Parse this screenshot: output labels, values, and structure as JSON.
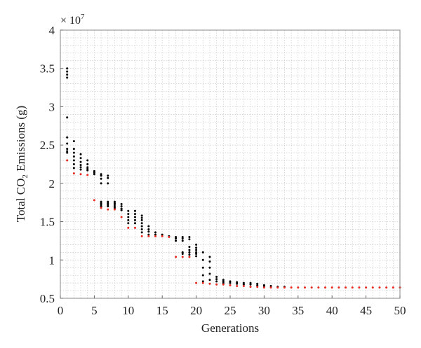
{
  "chart_data": {
    "type": "scatter",
    "title": "",
    "xlabel": "Generations",
    "ylabel_parts": {
      "pre": "Total CO",
      "sub": "2",
      "post": " Emissions (g)"
    },
    "y_multiplier_label": {
      "base": "× 10",
      "exp": "7"
    },
    "xlim": [
      0,
      50
    ],
    "ylim": [
      0.5,
      4
    ],
    "x_ticks": [
      0,
      5,
      10,
      15,
      20,
      25,
      30,
      35,
      40,
      45,
      50
    ],
    "x_tick_labels": [
      "0",
      "5",
      "10",
      "15",
      "20",
      "25",
      "30",
      "35",
      "40",
      "45",
      "50"
    ],
    "y_ticks": [
      0.5,
      1,
      1.5,
      2,
      2.5,
      3,
      3.5,
      4
    ],
    "y_tick_labels": [
      "0.5",
      "1",
      "1.5",
      "2",
      "2.5",
      "3",
      "3.5",
      "4"
    ],
    "grid": true,
    "series": [
      {
        "color": "#000000",
        "points": [
          [
            1,
            3.5
          ],
          [
            1,
            3.46
          ],
          [
            1,
            3.42
          ],
          [
            1,
            3.38
          ],
          [
            1,
            2.86
          ],
          [
            1,
            2.6
          ],
          [
            1,
            2.52
          ],
          [
            1,
            2.45
          ],
          [
            1,
            2.42
          ],
          [
            1,
            2.4
          ],
          [
            2,
            2.55
          ],
          [
            2,
            2.45
          ],
          [
            2,
            2.4
          ],
          [
            2,
            2.35
          ],
          [
            2,
            2.3
          ],
          [
            2,
            2.25
          ],
          [
            2,
            2.2
          ],
          [
            3,
            2.38
          ],
          [
            3,
            2.33
          ],
          [
            3,
            2.28
          ],
          [
            3,
            2.24
          ],
          [
            3,
            2.21
          ],
          [
            3,
            2.18
          ],
          [
            4,
            2.3
          ],
          [
            4,
            2.25
          ],
          [
            4,
            2.21
          ],
          [
            4,
            2.19
          ],
          [
            4,
            2.17
          ],
          [
            5,
            2.16
          ],
          [
            5,
            2.14
          ],
          [
            5,
            2.12
          ],
          [
            6,
            2.12
          ],
          [
            6,
            2.1
          ],
          [
            6,
            2.06
          ],
          [
            6,
            2.0
          ],
          [
            6,
            1.76
          ],
          [
            6,
            1.74
          ],
          [
            6,
            1.72
          ],
          [
            6,
            1.7
          ],
          [
            7,
            2.1
          ],
          [
            7,
            2.07
          ],
          [
            7,
            2.0
          ],
          [
            7,
            1.76
          ],
          [
            7,
            1.74
          ],
          [
            7,
            1.72
          ],
          [
            7,
            1.7
          ],
          [
            8,
            1.76
          ],
          [
            8,
            1.74
          ],
          [
            8,
            1.72
          ],
          [
            8,
            1.7
          ],
          [
            8,
            1.68
          ],
          [
            9,
            1.73
          ],
          [
            9,
            1.7
          ],
          [
            9,
            1.67
          ],
          [
            9,
            1.65
          ],
          [
            10,
            1.64
          ],
          [
            10,
            1.6
          ],
          [
            10,
            1.56
          ],
          [
            10,
            1.52
          ],
          [
            10,
            1.48
          ],
          [
            11,
            1.64
          ],
          [
            11,
            1.6
          ],
          [
            11,
            1.56
          ],
          [
            11,
            1.52
          ],
          [
            11,
            1.48
          ],
          [
            12,
            1.58
          ],
          [
            12,
            1.55
          ],
          [
            12,
            1.52
          ],
          [
            12,
            1.48
          ],
          [
            12,
            1.44
          ],
          [
            12,
            1.4
          ],
          [
            12,
            1.36
          ],
          [
            13,
            1.44
          ],
          [
            13,
            1.4
          ],
          [
            13,
            1.37
          ],
          [
            13,
            1.33
          ],
          [
            14,
            1.36
          ],
          [
            14,
            1.33
          ],
          [
            15,
            1.33
          ],
          [
            16,
            1.31
          ],
          [
            17,
            1.3
          ],
          [
            17,
            1.28
          ],
          [
            17,
            1.25
          ],
          [
            18,
            1.3
          ],
          [
            18,
            1.28
          ],
          [
            18,
            1.25
          ],
          [
            18,
            1.1
          ],
          [
            18,
            1.08
          ],
          [
            19,
            1.3
          ],
          [
            19,
            1.27
          ],
          [
            19,
            1.17
          ],
          [
            19,
            1.13
          ],
          [
            19,
            1.1
          ],
          [
            19,
            1.07
          ],
          [
            20,
            1.2
          ],
          [
            20,
            1.16
          ],
          [
            20,
            1.13
          ],
          [
            20,
            1.1
          ],
          [
            20,
            1.08
          ],
          [
            20,
            1.05
          ],
          [
            21,
            1.1
          ],
          [
            21,
            1.0
          ],
          [
            21,
            0.9
          ],
          [
            21,
            0.8
          ],
          [
            21,
            0.72
          ],
          [
            22,
            1.04
          ],
          [
            22,
            0.98
          ],
          [
            22,
            0.9
          ],
          [
            22,
            0.82
          ],
          [
            22,
            0.74
          ],
          [
            23,
            0.78
          ],
          [
            23,
            0.75
          ],
          [
            23,
            0.72
          ],
          [
            24,
            0.74
          ],
          [
            24,
            0.72
          ],
          [
            24,
            0.7
          ],
          [
            25,
            0.72
          ],
          [
            25,
            0.7
          ],
          [
            26,
            0.71
          ],
          [
            26,
            0.69
          ],
          [
            27,
            0.7
          ],
          [
            27,
            0.68
          ],
          [
            28,
            0.7
          ],
          [
            28,
            0.68
          ],
          [
            29,
            0.69
          ],
          [
            29,
            0.67
          ],
          [
            30,
            0.67
          ],
          [
            30,
            0.66
          ],
          [
            31,
            0.66
          ],
          [
            32,
            0.65
          ],
          [
            33,
            0.65
          ]
        ]
      },
      {
        "color": "#e8281e",
        "points": [
          [
            1,
            2.3
          ],
          [
            2,
            2.13
          ],
          [
            3,
            2.12
          ],
          [
            4,
            2.11
          ],
          [
            5,
            1.78
          ],
          [
            6,
            1.68
          ],
          [
            7,
            1.66
          ],
          [
            8,
            1.66
          ],
          [
            9,
            1.56
          ],
          [
            10,
            1.42
          ],
          [
            11,
            1.42
          ],
          [
            12,
            1.31
          ],
          [
            13,
            1.31
          ],
          [
            14,
            1.31
          ],
          [
            15,
            1.31
          ],
          [
            16,
            1.3
          ],
          [
            17,
            1.04
          ],
          [
            18,
            1.04
          ],
          [
            19,
            1.04
          ],
          [
            20,
            0.7
          ],
          [
            21,
            0.7
          ],
          [
            22,
            0.69
          ],
          [
            23,
            0.68
          ],
          [
            24,
            0.68
          ],
          [
            25,
            0.67
          ],
          [
            26,
            0.66
          ],
          [
            27,
            0.66
          ],
          [
            28,
            0.65
          ],
          [
            29,
            0.65
          ],
          [
            30,
            0.64
          ],
          [
            31,
            0.64
          ],
          [
            32,
            0.64
          ],
          [
            33,
            0.64
          ],
          [
            34,
            0.64
          ],
          [
            35,
            0.64
          ],
          [
            36,
            0.64
          ],
          [
            37,
            0.64
          ],
          [
            38,
            0.64
          ],
          [
            39,
            0.64
          ],
          [
            40,
            0.64
          ],
          [
            41,
            0.64
          ],
          [
            42,
            0.64
          ],
          [
            43,
            0.64
          ],
          [
            44,
            0.64
          ],
          [
            45,
            0.64
          ],
          [
            46,
            0.64
          ],
          [
            47,
            0.64
          ],
          [
            48,
            0.64
          ],
          [
            49,
            0.64
          ],
          [
            50,
            0.64
          ]
        ]
      }
    ]
  }
}
